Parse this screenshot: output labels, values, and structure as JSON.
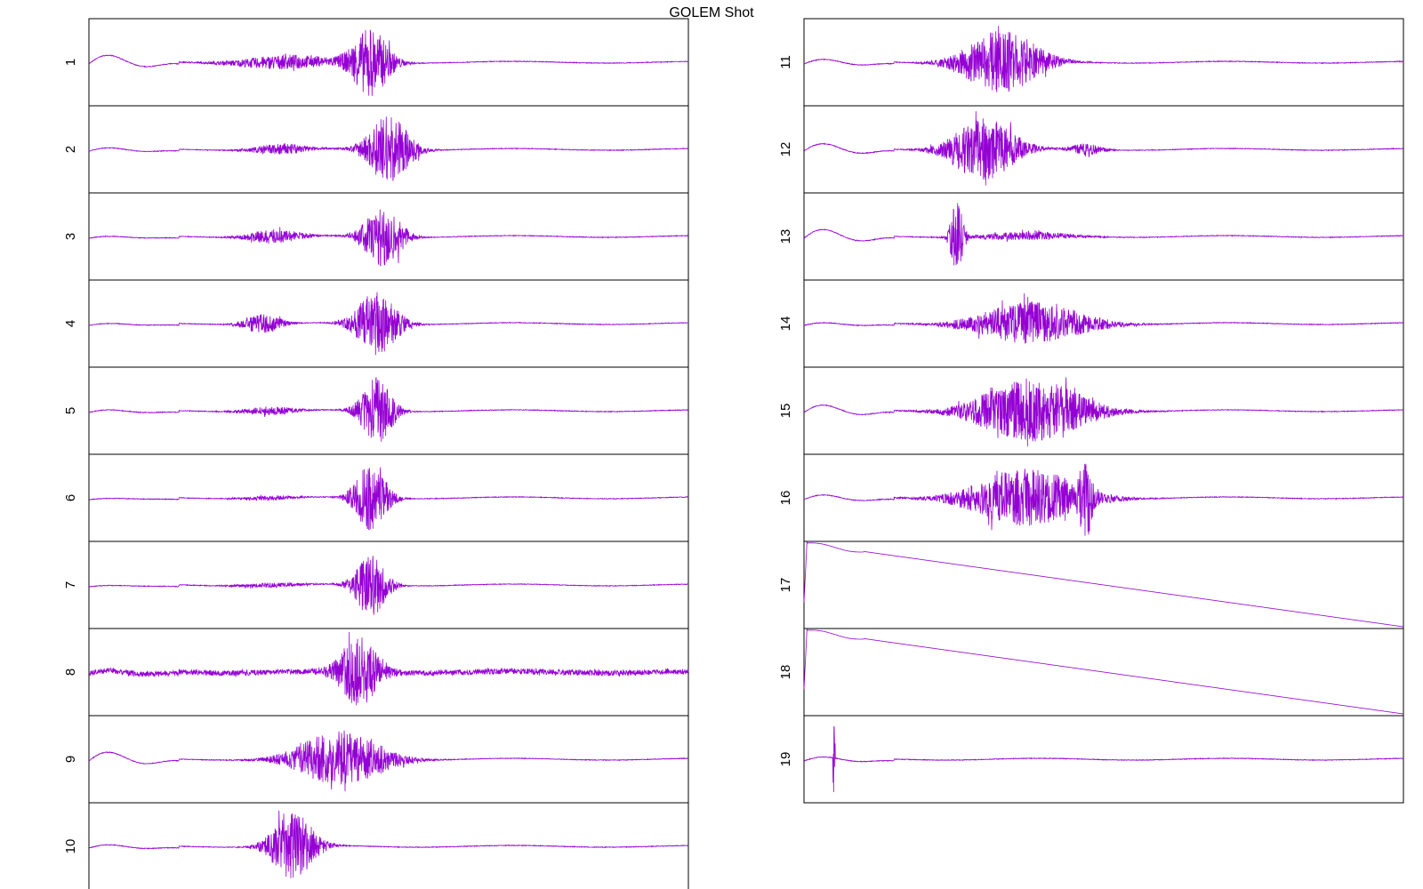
{
  "chart_data": {
    "type": "line",
    "title": "GOLEM Shot",
    "color": "#9400D3",
    "grid": false,
    "layout": "two columns of stacked panels, no axes ticks",
    "series": [
      {
        "name": "1",
        "kind": "bursts",
        "wiggle": 0.12,
        "bursts": [
          {
            "t": 0.33,
            "w": 0.09,
            "a": 0.1
          },
          {
            "t": 0.47,
            "w": 0.035,
            "a": 0.48
          }
        ]
      },
      {
        "name": "2",
        "kind": "bursts",
        "wiggle": 0.04,
        "bursts": [
          {
            "t": 0.32,
            "w": 0.05,
            "a": 0.08
          },
          {
            "t": 0.5,
            "w": 0.04,
            "a": 0.48
          }
        ]
      },
      {
        "name": "3",
        "kind": "bursts",
        "wiggle": 0.02,
        "bursts": [
          {
            "t": 0.31,
            "w": 0.05,
            "a": 0.1
          },
          {
            "t": 0.49,
            "w": 0.035,
            "a": 0.45
          }
        ]
      },
      {
        "name": "4",
        "kind": "bursts",
        "wiggle": 0.02,
        "bursts": [
          {
            "t": 0.29,
            "w": 0.035,
            "a": 0.14
          },
          {
            "t": 0.48,
            "w": 0.04,
            "a": 0.45
          }
        ]
      },
      {
        "name": "5",
        "kind": "bursts",
        "wiggle": 0.03,
        "bursts": [
          {
            "t": 0.3,
            "w": 0.05,
            "a": 0.06
          },
          {
            "t": 0.48,
            "w": 0.03,
            "a": 0.48
          }
        ]
      },
      {
        "name": "6",
        "kind": "bursts",
        "wiggle": 0.01,
        "bursts": [
          {
            "t": 0.3,
            "w": 0.05,
            "a": 0.03
          },
          {
            "t": 0.47,
            "w": 0.03,
            "a": 0.48
          }
        ]
      },
      {
        "name": "7",
        "kind": "bursts",
        "wiggle": 0.01,
        "bursts": [
          {
            "t": 0.3,
            "w": 0.06,
            "a": 0.03
          },
          {
            "t": 0.47,
            "w": 0.03,
            "a": 0.45
          }
        ]
      },
      {
        "name": "8",
        "kind": "bursts",
        "wiggle": 0.04,
        "noise": 0.04,
        "bursts": [
          {
            "t": 0.45,
            "w": 0.035,
            "a": 0.48
          }
        ]
      },
      {
        "name": "9",
        "kind": "bursts",
        "wiggle": 0.12,
        "bursts": [
          {
            "t": 0.42,
            "w": 0.08,
            "a": 0.4
          }
        ]
      },
      {
        "name": "10",
        "kind": "bursts",
        "wiggle": 0.04,
        "bursts": [
          {
            "t": 0.34,
            "w": 0.04,
            "a": 0.48
          }
        ]
      },
      {
        "name": "11",
        "kind": "bursts",
        "wiggle": 0.06,
        "bursts": [
          {
            "t": 0.33,
            "w": 0.07,
            "a": 0.45
          }
        ]
      },
      {
        "name": "12",
        "kind": "bursts",
        "wiggle": 0.1,
        "bursts": [
          {
            "t": 0.3,
            "w": 0.06,
            "a": 0.45
          },
          {
            "t": 0.47,
            "w": 0.03,
            "a": 0.08
          }
        ]
      },
      {
        "name": "13",
        "kind": "bursts",
        "wiggle": 0.12,
        "bursts": [
          {
            "t": 0.255,
            "w": 0.012,
            "a": 0.5
          },
          {
            "t": 0.37,
            "w": 0.08,
            "a": 0.06
          }
        ]
      },
      {
        "name": "14",
        "kind": "bursts",
        "wiggle": 0.03,
        "bursts": [
          {
            "t": 0.38,
            "w": 0.1,
            "a": 0.3
          }
        ]
      },
      {
        "name": "15",
        "kind": "bursts",
        "wiggle": 0.1,
        "bursts": [
          {
            "t": 0.38,
            "w": 0.1,
            "a": 0.45
          }
        ]
      },
      {
        "name": "16",
        "kind": "bursts",
        "wiggle": 0.06,
        "bursts": [
          {
            "t": 0.37,
            "w": 0.1,
            "a": 0.42
          },
          {
            "t": 0.47,
            "w": 0.01,
            "a": 0.5
          }
        ]
      },
      {
        "name": "17",
        "kind": "ramp",
        "start": 0.48,
        "end": -0.48
      },
      {
        "name": "18",
        "kind": "ramp",
        "start": 0.48,
        "end": -0.48
      },
      {
        "name": "19",
        "kind": "bursts",
        "wiggle": 0.05,
        "spike": 0.05,
        "bursts": []
      }
    ]
  }
}
